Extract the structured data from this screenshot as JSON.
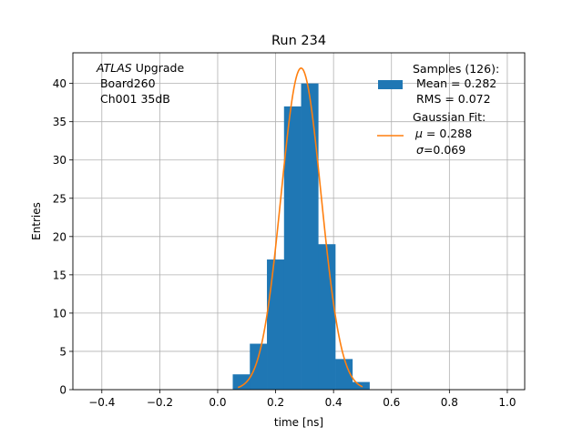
{
  "chart_data": {
    "type": "bar",
    "title": "Run 234",
    "xlabel": "time [ns]",
    "ylabel": "Entries",
    "xlim": [
      -0.5,
      1.06
    ],
    "ylim": [
      0,
      44
    ],
    "grid": true,
    "xticks": [
      -0.4,
      -0.2,
      0.0,
      0.2,
      0.4,
      0.6,
      0.8,
      1.0
    ],
    "xtick_labels": [
      "−0.4",
      "−0.2",
      "0.0",
      "0.2",
      "0.4",
      "0.6",
      "0.8",
      "1.0"
    ],
    "yticks": [
      0,
      5,
      10,
      15,
      20,
      25,
      30,
      35,
      40
    ],
    "ytick_labels": [
      "0",
      "5",
      "10",
      "15",
      "20",
      "25",
      "30",
      "35",
      "40"
    ],
    "histogram": {
      "name": "Samples (126):",
      "color": "#1f77b4",
      "bin_edges": [
        0.052,
        0.111,
        0.17,
        0.229,
        0.288,
        0.347,
        0.406,
        0.465,
        0.524
      ],
      "counts": [
        2,
        6,
        17,
        37,
        40,
        19,
        4,
        1
      ]
    },
    "fit": {
      "name": "Gaussian Fit:",
      "color": "#ff7f0e",
      "mu": 0.288,
      "sigma": 0.069,
      "amplitude": 42,
      "x_range": [
        0.07,
        0.5
      ]
    },
    "annotation": {
      "atlas_italic": "ATLAS",
      "atlas_rest": " Upgrade",
      "line2": " Board260",
      "line3": " Ch001 35dB"
    },
    "legend": {
      "placement": "top-right",
      "samples_title": "Samples (126):",
      "samples_mean": " Mean = 0.282",
      "samples_rms": " RMS = 0.072",
      "fit_title": "Gaussian Fit:",
      "fit_mu_symbol": "μ",
      "fit_mu_rest": " = 0.288",
      "fit_sigma_symbol": "σ",
      "fit_sigma_rest": "=0.069"
    }
  }
}
